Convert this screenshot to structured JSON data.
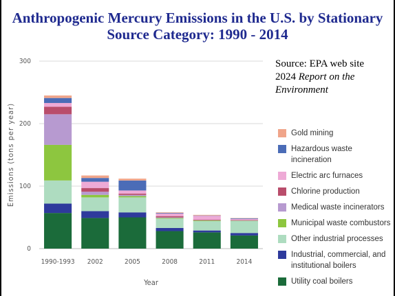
{
  "chart_data": {
    "type": "stacked_bar",
    "title": "Anthropogenic Mercury Emissions in the U.S. by Stationary Source Category: 1990 - 2014",
    "source": [
      "Source: EPA web site",
      "2024",
      "Report on the Environment"
    ],
    "x_label": "Year",
    "y_label": "Emissions (tons per year)",
    "categories": [
      "1990-1993",
      "2002",
      "2005",
      "2008",
      "2011",
      "2014"
    ],
    "ylim": [
      0,
      300
    ],
    "yticks": [
      0,
      100,
      200,
      300
    ],
    "grid": true,
    "series": [
      {
        "name": "Gold mining",
        "color": "#f0a58a",
        "values": [
          4,
          4,
          3,
          1,
          1,
          0.5
        ]
      },
      {
        "name": "Hazardous waste incineration",
        "color": "#4b6cb7",
        "values": [
          8,
          6,
          16,
          1,
          0.5,
          1
        ]
      },
      {
        "name": "Electric arc furnaces",
        "color": "#eeaad6",
        "values": [
          6,
          10,
          5,
          4,
          6,
          2
        ]
      },
      {
        "name": "Chlorine production",
        "color": "#b94d6b",
        "values": [
          12,
          6,
          2,
          2,
          1,
          0.5
        ]
      },
      {
        "name": "Medical waste incinerators",
        "color": "#b79ad0",
        "values": [
          49,
          5,
          2,
          1,
          0.5,
          0.5
        ]
      },
      {
        "name": "Municipal waste combustors",
        "color": "#8dc63f",
        "values": [
          57,
          4,
          2,
          1,
          1,
          0.5
        ]
      },
      {
        "name": "Other industrial processes",
        "color": "#aedcc0",
        "values": [
          37,
          22,
          24,
          15,
          15,
          19
        ]
      },
      {
        "name": "Industrial, commercial, and institutional boilers",
        "color": "#2e3a9c",
        "values": [
          15,
          11,
          8,
          5,
          3,
          4
        ]
      },
      {
        "name": "Utility coal boilers",
        "color": "#1b6b3a",
        "values": [
          57,
          49,
          50,
          28,
          26,
          21
        ]
      }
    ]
  }
}
